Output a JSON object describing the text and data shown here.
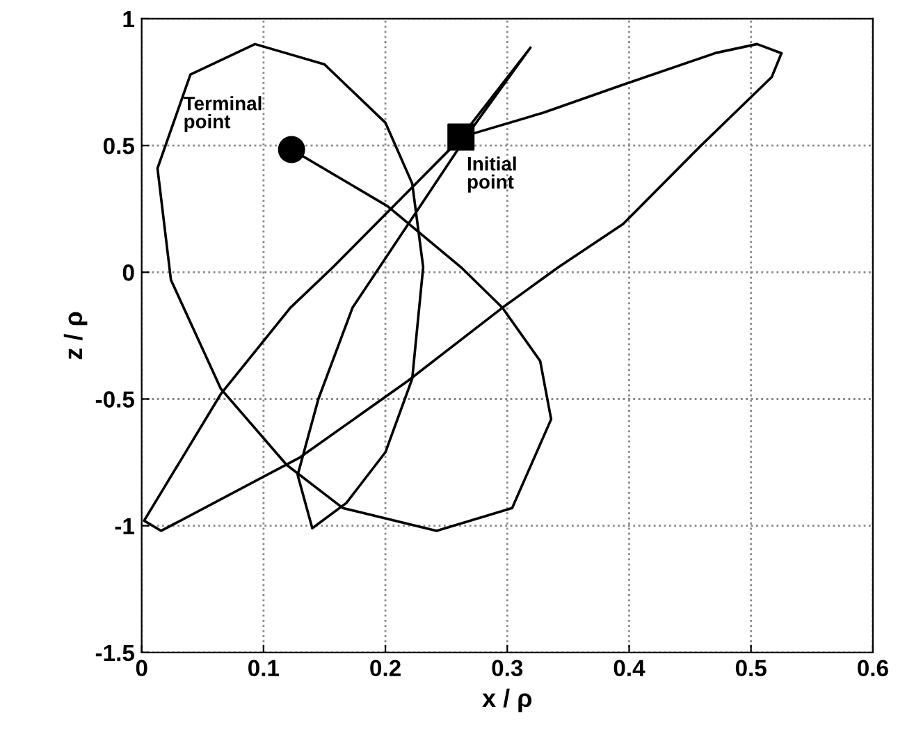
{
  "chart_data": {
    "type": "line",
    "xlabel": "x / ρ",
    "ylabel": "z / ρ",
    "xlim": [
      0,
      0.6
    ],
    "xticks": [
      0,
      0.1,
      0.2,
      0.3,
      0.4,
      0.5,
      0.6
    ],
    "ylim": [
      -1.5,
      1
    ],
    "yticks": [
      -1.5,
      -1,
      -0.5,
      0,
      0.5,
      1
    ],
    "grid": true,
    "line_style": "solid",
    "series": [
      {
        "color": "#000000",
        "marker": "none",
        "x": [
          0.262,
          0.33,
          0.395,
          0.471,
          0.505,
          0.525,
          0.517,
          0.459,
          0.395,
          0.342,
          0.296,
          0.218,
          0.13,
          0.016,
          0.002,
          0.031,
          0.065,
          0.122,
          0.157,
          0.256,
          0.262,
          0.319,
          0.27,
          0.173,
          0.145,
          0.128,
          0.14,
          0.168,
          0.2,
          0.222,
          0.231,
          0.222,
          0.2,
          0.15,
          0.093,
          0.04,
          0.013,
          0.024,
          0.065,
          0.119,
          0.165,
          0.242,
          0.304,
          0.336,
          0.327,
          0.296,
          0.262,
          0.202,
          0.123
        ],
        "values": [
          0.533,
          0.63,
          0.74,
          0.865,
          0.9,
          0.864,
          0.77,
          0.5,
          0.19,
          0.02,
          -0.14,
          -0.43,
          -0.73,
          -1.02,
          -0.98,
          -0.75,
          -0.48,
          -0.14,
          0.02,
          0.5,
          0.533,
          0.886,
          0.56,
          -0.14,
          -0.5,
          -0.8,
          -1.01,
          -0.91,
          -0.71,
          -0.42,
          0.02,
          0.35,
          0.59,
          0.82,
          0.9,
          0.78,
          0.41,
          -0.03,
          -0.46,
          -0.76,
          -0.93,
          -1.02,
          -0.93,
          -0.58,
          -0.35,
          -0.14,
          0.02,
          0.26,
          0.484
        ]
      },
      {
        "type": "scatter",
        "color": "#000000",
        "marker": "square",
        "x": [
          0.262
        ],
        "values": [
          0.533
        ]
      },
      {
        "type": "scatter",
        "color": "#000000",
        "marker": "circle",
        "x": [
          0.123
        ],
        "values": [
          0.484
        ]
      }
    ],
    "annotations": [
      {
        "text": "Terminal\npoint",
        "x": 0.123,
        "y": 0.484
      },
      {
        "text": "Initial\npoint",
        "x": 0.262,
        "y": 0.533
      }
    ]
  }
}
